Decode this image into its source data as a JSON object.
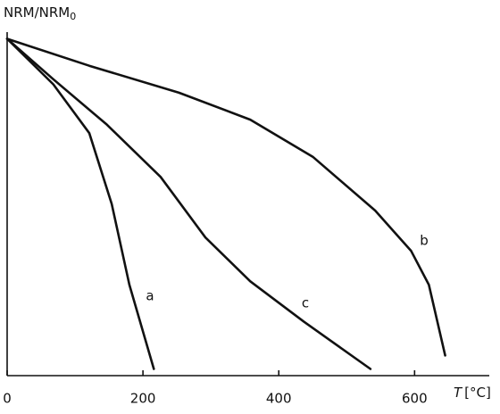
{
  "chart_data": {
    "type": "line",
    "y_label": {
      "text": "NRM/NRM",
      "subscript": "0"
    },
    "x_label": {
      "symbol": "T",
      "unit": "[°C]"
    },
    "xlim": [
      0,
      710
    ],
    "xticks": [
      0,
      200,
      400,
      600
    ],
    "ylim": [
      0,
      1.02
    ],
    "series": [
      {
        "name": "a",
        "color": "#111111",
        "x": [
          0,
          68,
          121,
          154,
          180,
          216
        ],
        "values": [
          1.0,
          0.865,
          0.72,
          0.51,
          0.27,
          0.02
        ]
      },
      {
        "name": "b",
        "color": "#111111",
        "x": [
          0,
          121,
          253,
          358,
          450,
          542,
          595,
          621,
          645
        ],
        "values": [
          1.0,
          0.92,
          0.84,
          0.76,
          0.65,
          0.49,
          0.37,
          0.27,
          0.06
        ]
      },
      {
        "name": "c",
        "color": "#111111",
        "x": [
          0,
          68,
          147,
          226,
          292,
          358,
          437,
          535
        ],
        "values": [
          1.0,
          0.88,
          0.745,
          0.59,
          0.41,
          0.28,
          0.16,
          0.02
        ]
      }
    ]
  }
}
